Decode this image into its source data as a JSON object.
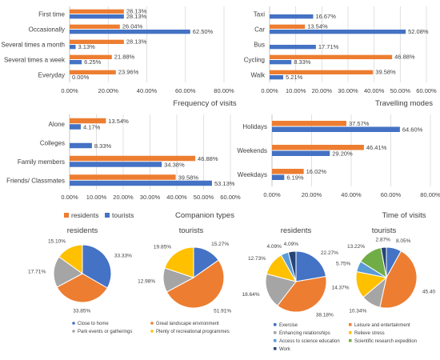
{
  "colors": {
    "residents": "#ED7D31",
    "tourists": "#4472C4",
    "gray": "#A5A5A5",
    "gold": "#FFC000",
    "lightblue": "#5B9BD5",
    "green": "#70AD47",
    "navy": "#264478",
    "grid": "#D9D9D9",
    "text": "#404040"
  },
  "bar_legend": {
    "residents": "residents",
    "tourists": "tourists"
  },
  "chart_data": [
    {
      "type": "bar",
      "orientation": "horizontal",
      "title": "Frequency of visits",
      "categories": [
        "First time",
        "Occasionally",
        "Several times a month",
        "Several times a week",
        "Everyday"
      ],
      "series": [
        {
          "name": "residents",
          "values": [
            28.13,
            26.04,
            28.13,
            21.88,
            23.96
          ],
          "labels": [
            "28.13%",
            "26.04%",
            "28.13%",
            "21.88%",
            "23.96%"
          ]
        },
        {
          "name": "tourists",
          "values": [
            28.13,
            62.5,
            3.13,
            6.25,
            0.0
          ],
          "labels": [
            "28.13%",
            "62.50%",
            "3.13%",
            "6.25%",
            "0.00%"
          ]
        }
      ],
      "xlim": [
        0,
        80
      ],
      "xticks": [
        "0.00%",
        "20.00%",
        "40.00%",
        "60.00%",
        "80.00%"
      ],
      "grid": true
    },
    {
      "type": "bar",
      "orientation": "horizontal",
      "title": "Travelling modes",
      "categories": [
        "Taxi",
        "Car",
        "Bus",
        "Cycling",
        "Walk"
      ],
      "series": [
        {
          "name": "residents",
          "values": [
            null,
            13.54,
            null,
            46.88,
            39.58
          ],
          "labels": [
            "",
            "13.54%",
            "",
            "46.88%",
            "39.58%"
          ]
        },
        {
          "name": "tourists",
          "values": [
            16.67,
            52.08,
            17.71,
            8.33,
            5.21
          ],
          "labels": [
            "16.67%",
            "52.08%",
            "17.71%",
            "8.33%",
            "5.21%"
          ]
        }
      ],
      "xlim": [
        0,
        60
      ],
      "xticks": [
        "0.00%",
        "10.00%",
        "20.00%",
        "30.00%",
        "40.00%",
        "50.00%",
        "60.00%"
      ],
      "grid": true
    },
    {
      "type": "bar",
      "orientation": "horizontal",
      "title": "Companion types",
      "categories": [
        "Alone",
        "Colleges",
        "Family members",
        "Friends/ Classmates"
      ],
      "series": [
        {
          "name": "residents",
          "values": [
            13.54,
            null,
            46.88,
            39.58
          ],
          "labels": [
            "13.54%",
            "",
            "46.88%",
            "39.58%"
          ]
        },
        {
          "name": "tourists",
          "values": [
            4.17,
            8.33,
            34.38,
            53.13
          ],
          "labels": [
            "4.17%",
            "8.33%",
            "34.38%",
            "53.13%"
          ]
        }
      ],
      "xlim": [
        0,
        60
      ],
      "xticks": [
        "0.00%",
        "10.00%",
        "20.00%",
        "30.00%",
        "40.00%",
        "50.00%",
        "60.00%"
      ],
      "grid": true
    },
    {
      "type": "bar",
      "orientation": "horizontal",
      "title": "Time of visits",
      "categories": [
        "Holidays",
        "Weekends",
        "Weekdays"
      ],
      "series": [
        {
          "name": "residents",
          "values": [
            37.57,
            46.41,
            16.02
          ],
          "labels": [
            "37.57%",
            "46.41%",
            "16.02%"
          ]
        },
        {
          "name": "tourists",
          "values": [
            64.6,
            29.2,
            6.19
          ],
          "labels": [
            "64.60%",
            "29.20%",
            "6.19%"
          ]
        }
      ],
      "xlim": [
        0,
        80
      ],
      "xticks": [
        "0.00%",
        "20.00%",
        "40.00%",
        "60.00%",
        "80.00%"
      ],
      "grid": true
    },
    {
      "type": "pie",
      "title": "residents",
      "slices": [
        {
          "label": "Close to home",
          "value": 33.33,
          "text": "33.33%",
          "color": "#4472C4"
        },
        {
          "label": "Great landscape environment",
          "value": 33.85,
          "text": "33.85%",
          "color": "#ED7D31"
        },
        {
          "label": "Park events or gatherings",
          "value": 17.71,
          "text": "17.71%",
          "color": "#A5A5A5"
        },
        {
          "label": "Plenty of recreational programmes",
          "value": 15.1,
          "text": "15.10%",
          "color": "#FFC000"
        }
      ]
    },
    {
      "type": "pie",
      "title": "tourists",
      "slices": [
        {
          "label": "Close to home",
          "value": 15.27,
          "text": "15.27%",
          "color": "#4472C4"
        },
        {
          "label": "Great landscape environment",
          "value": 51.91,
          "text": "51.91%",
          "color": "#ED7D31"
        },
        {
          "label": "Park events or gatherings",
          "value": 12.98,
          "text": "12.98%",
          "color": "#A5A5A5"
        },
        {
          "label": "Plenty of recreational programmes",
          "value": 19.85,
          "text": "19.85%",
          "color": "#FFC000"
        }
      ]
    },
    {
      "type": "pie",
      "title": "residents",
      "slices": [
        {
          "label": "Exercise",
          "value": 22.27,
          "text": "22.27%",
          "color": "#4472C4"
        },
        {
          "label": "Leisure and entertainment",
          "value": 38.18,
          "text": "38.18%",
          "color": "#ED7D31"
        },
        {
          "label": "Enhancing relationships",
          "value": 18.64,
          "text": "18.64%",
          "color": "#A5A5A5"
        },
        {
          "label": "Relieve stress",
          "value": 12.73,
          "text": "12.73%",
          "color": "#FFC000"
        },
        {
          "label": "Access to science education",
          "value": 4.09,
          "text": "4.09%",
          "color": "#5B9BD5"
        },
        {
          "label": "Scientific research expedition",
          "value": 0,
          "text": "",
          "color": "#70AD47"
        },
        {
          "label": "Work",
          "value": 4.09,
          "text": "4.09%",
          "color": "#264478"
        }
      ]
    },
    {
      "type": "pie",
      "title": "tourists",
      "slices": [
        {
          "label": "Exercise",
          "value": 8.05,
          "text": "8.05%",
          "color": "#4472C4"
        },
        {
          "label": "Leisure and entertainment",
          "value": 45.4,
          "text": "45.40",
          "color": "#ED7D31"
        },
        {
          "label": "Enhancing relationships",
          "value": 10.34,
          "text": "10.34%",
          "color": "#A5A5A5"
        },
        {
          "label": "Relieve stress",
          "value": 14.37,
          "text": "14.37%",
          "color": "#FFC000"
        },
        {
          "label": "Access to science education",
          "value": 5.75,
          "text": "5.75%",
          "color": "#5B9BD5"
        },
        {
          "label": "Scientific research expedition",
          "value": 13.22,
          "text": "13.22%",
          "color": "#70AD47"
        },
        {
          "label": "Work",
          "value": 2.87,
          "text": "2.87%",
          "color": "#264478"
        }
      ]
    }
  ],
  "pie_legends": {
    "left": [
      "Close to home",
      "Great landscape environment",
      "Park events or gatherings",
      "Plenty of recreational programmes"
    ],
    "right": [
      "Exercise",
      "Leisure and entertainment",
      "Enhancing relationships",
      "Relieve stress",
      "Access to science education",
      "Scientific research expedition",
      "Work"
    ]
  }
}
